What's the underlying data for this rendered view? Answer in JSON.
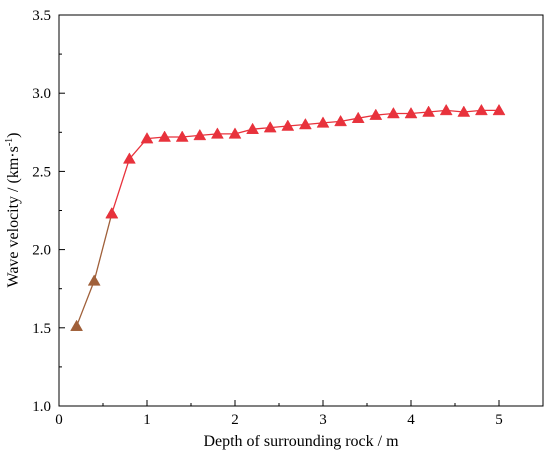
{
  "chart_data": {
    "type": "line",
    "xlabel": "Depth of surrounding rock / m",
    "ylabel_prefix": "Wave velocity / (km·s",
    "ylabel_sup": "-1",
    "ylabel_suffix": ")",
    "xlim": [
      0,
      5.5
    ],
    "ylim": [
      1.0,
      3.5
    ],
    "x_ticks": [
      "0",
      "1",
      "2",
      "3",
      "4",
      "5"
    ],
    "x_tick_values": [
      0,
      1,
      2,
      3,
      4,
      5
    ],
    "y_ticks": [
      "1.0",
      "1.5",
      "2.0",
      "2.5",
      "3.0",
      "3.5"
    ],
    "y_tick_values": [
      1.0,
      1.5,
      2.0,
      2.5,
      3.0,
      3.5
    ],
    "grid": false,
    "series": [
      {
        "color": "#a0603a",
        "marker": "triangle",
        "x": [
          0.2,
          0.4,
          0.6
        ],
        "y": [
          1.51,
          1.8,
          2.23
        ]
      },
      {
        "color": "#e8323c",
        "marker": "triangle",
        "x": [
          0.6,
          0.8,
          1.0,
          1.2,
          1.4,
          1.6,
          1.8,
          2.0,
          2.2,
          2.4,
          2.6,
          2.8,
          3.0,
          3.2,
          3.4,
          3.6,
          3.8,
          4.0,
          4.2,
          4.4,
          4.6,
          4.8,
          5.0
        ],
        "y": [
          2.23,
          2.58,
          2.71,
          2.72,
          2.72,
          2.73,
          2.74,
          2.74,
          2.77,
          2.78,
          2.79,
          2.8,
          2.81,
          2.82,
          2.84,
          2.86,
          2.87,
          2.87,
          2.88,
          2.89,
          2.88,
          2.89,
          2.89
        ]
      }
    ]
  }
}
